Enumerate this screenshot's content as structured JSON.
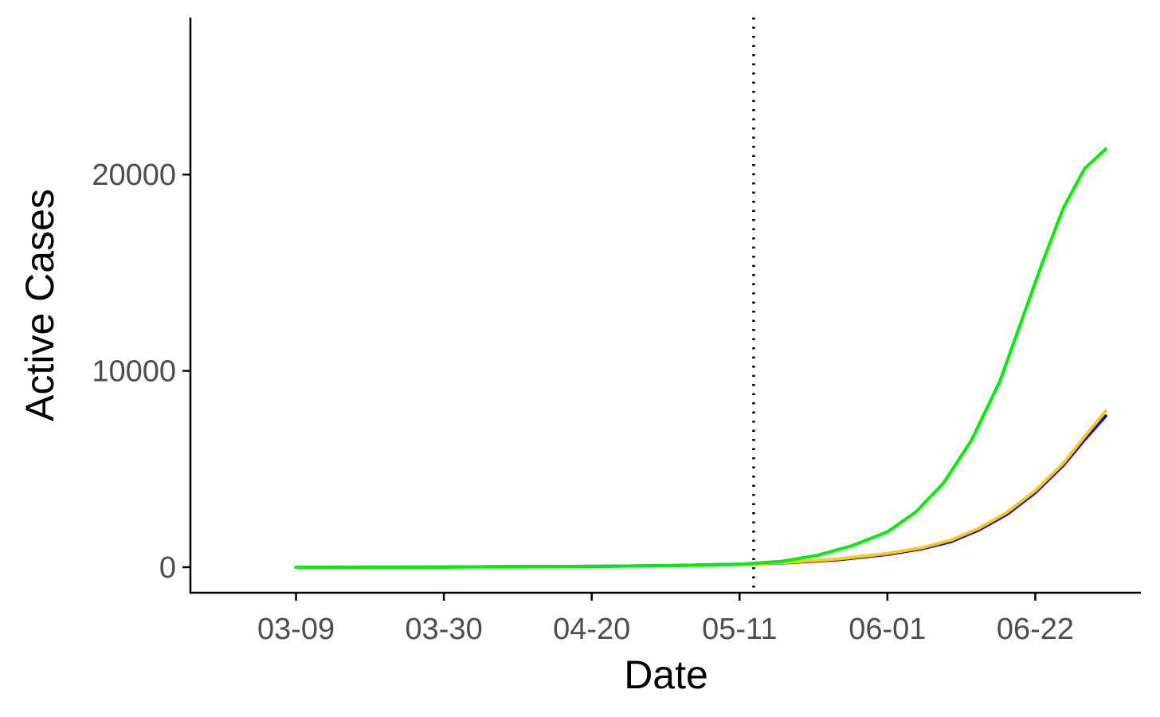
{
  "chart_data": {
    "type": "line",
    "title": "",
    "xlabel": "Date",
    "ylabel": "Active Cases",
    "x_tick_labels": [
      "03-09",
      "03-30",
      "04-20",
      "05-11",
      "06-01",
      "06-22"
    ],
    "y_tick_labels": [
      "0",
      "10000",
      "20000"
    ],
    "x_ticks": [
      "2020-03-09",
      "2020-03-30",
      "2020-04-20",
      "2020-05-11",
      "2020-06-01",
      "2020-06-22"
    ],
    "y_ticks": [
      0,
      10000,
      20000
    ],
    "xlim": [
      "2020-02-23",
      "2020-07-07"
    ],
    "ylim": [
      -1300,
      28000
    ],
    "vline": {
      "x": "2020-05-13",
      "style": "dotted",
      "color": "#000000"
    },
    "grid": false,
    "legend": "none",
    "series": [
      {
        "color": "#0000ff",
        "points": [
          [
            "2020-03-09",
            0
          ],
          [
            "2020-03-30",
            8
          ],
          [
            "2020-04-08",
            25
          ],
          [
            "2020-04-20",
            45
          ],
          [
            "2020-05-01",
            80
          ],
          [
            "2020-05-11",
            150
          ],
          [
            "2020-05-18",
            230
          ],
          [
            "2020-05-25",
            380
          ],
          [
            "2020-06-01",
            650
          ],
          [
            "2020-06-06",
            950
          ],
          [
            "2020-06-10",
            1300
          ],
          [
            "2020-06-14",
            1900
          ],
          [
            "2020-06-18",
            2700
          ],
          [
            "2020-06-22",
            3800
          ],
          [
            "2020-06-26",
            5200
          ],
          [
            "2020-06-29",
            6500
          ],
          [
            "2020-07-02",
            7700
          ]
        ]
      },
      {
        "color": "#ffcc00",
        "points": [
          [
            "2020-05-11",
            150
          ],
          [
            "2020-05-18",
            250
          ],
          [
            "2020-05-25",
            420
          ],
          [
            "2020-06-01",
            700
          ],
          [
            "2020-06-06",
            1000
          ],
          [
            "2020-06-10",
            1380
          ],
          [
            "2020-06-14",
            1980
          ],
          [
            "2020-06-18",
            2800
          ],
          [
            "2020-06-22",
            3900
          ],
          [
            "2020-06-26",
            5300
          ],
          [
            "2020-06-29",
            6650
          ],
          [
            "2020-07-02",
            7950
          ]
        ]
      },
      {
        "color": "#00ee00",
        "points": [
          [
            "2020-03-09",
            0
          ],
          [
            "2020-03-30",
            8
          ],
          [
            "2020-04-08",
            25
          ],
          [
            "2020-04-20",
            45
          ],
          [
            "2020-05-01",
            80
          ],
          [
            "2020-05-11",
            150
          ],
          [
            "2020-05-17",
            300
          ],
          [
            "2020-05-22",
            600
          ],
          [
            "2020-05-27",
            1100
          ],
          [
            "2020-06-01",
            1800
          ],
          [
            "2020-06-05",
            2800
          ],
          [
            "2020-06-09",
            4300
          ],
          [
            "2020-06-13",
            6500
          ],
          [
            "2020-06-17",
            9500
          ],
          [
            "2020-06-20",
            12500
          ],
          [
            "2020-06-23",
            15500
          ],
          [
            "2020-06-26",
            18300
          ],
          [
            "2020-06-29",
            20300
          ],
          [
            "2020-07-02",
            21300
          ]
        ]
      }
    ]
  }
}
